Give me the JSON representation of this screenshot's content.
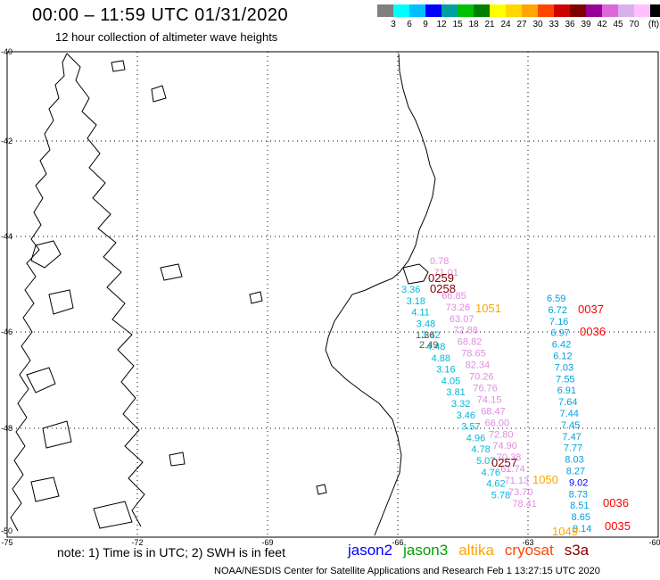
{
  "title": "00:00 – 11:59 UTC 01/31/2020",
  "subtitle": "12 hour collection of altimeter wave heights",
  "legend": {
    "colors": [
      "#808080",
      "#00ffff",
      "#00bfff",
      "#0000ff",
      "#00a0a0",
      "#00c000",
      "#008000",
      "#ffff00",
      "#ffd700",
      "#ffa500",
      "#ff4500",
      "#d00000",
      "#800000",
      "#990099",
      "#dd66dd",
      "#d8b0ee",
      "#ffc0ff",
      "#000000"
    ],
    "labels": [
      "3",
      "6",
      "9",
      "12",
      "15",
      "18",
      "21",
      "24",
      "27",
      "30",
      "33",
      "36",
      "39",
      "42",
      "45",
      "70",
      "(ft)"
    ]
  },
  "axes": {
    "lon": [
      "-75",
      "-72",
      "-69",
      "-66",
      "-63",
      "-60"
    ],
    "lat": [
      "-40",
      "-42",
      "-44",
      "-46",
      "-48",
      "-50"
    ]
  },
  "note": "note:  1) Time is in UTC;  2) SWH is in feet",
  "satellites": [
    {
      "name": "jason2",
      "color": "#0000ff"
    },
    {
      "name": "jason3",
      "color": "#00a000"
    },
    {
      "name": "altika",
      "color": "#ffa500"
    },
    {
      "name": "cryosat",
      "color": "#ff4500"
    },
    {
      "name": "s3a",
      "color": "#800000"
    }
  ],
  "footer": "NOAA/NESDIS Center for Satellite Applications and Research    Feb  1 13:27:15 UTC 2020",
  "tracks": [
    {
      "name": "pink-track",
      "color": "#e08ce0",
      "values": [
        "0.78",
        "71.01",
        "",
        "66.85",
        "73.26",
        "63.07",
        "72.88",
        "68.82",
        "78.65",
        "82.34",
        "70.26",
        "76.76",
        "74.15",
        "68.47",
        "66.00",
        "72.80",
        "74.90",
        "70.38",
        "61.74",
        "71.13",
        "73.70",
        "78.41"
      ]
    },
    {
      "name": "cyan-track",
      "color": "#00b8d8",
      "values": [
        "3.36",
        "3.18",
        "4.11",
        "3.48",
        "3.42",
        "4.48",
        "4.88",
        "3.16",
        "4.05",
        "3.81",
        "3.32",
        "3.46",
        "3.57",
        "4.96",
        "4.78",
        "5.07",
        "4.76",
        "4.62",
        "5.78"
      ]
    },
    {
      "name": "gray-track",
      "color": "#555555",
      "values": [
        "1.36",
        "2.49"
      ]
    },
    {
      "name": "east-track",
      "color": "#00a0e0",
      "values": [
        "6.59",
        "6.72",
        "7.16",
        "6.97",
        "6.42",
        "6.12",
        "7.03",
        "7.55",
        "6.91",
        "7.64",
        "7.44",
        "7.45",
        "7.47",
        "7.77",
        "8.03",
        "8.27",
        "9.02",
        "8.73",
        "8.51",
        "8.65",
        "9.14"
      ]
    }
  ],
  "times": [
    {
      "label": "0259",
      "color": "#800000"
    },
    {
      "label": "0258",
      "color": "#800000"
    },
    {
      "label": "1051",
      "color": "#ffa500"
    },
    {
      "label": "0037",
      "color": "#ff0000"
    },
    {
      "label": "0036",
      "color": "#ff0000"
    },
    {
      "label": "0257",
      "color": "#800000"
    },
    {
      "label": "1050",
      "color": "#ffa500"
    },
    {
      "label": "0036",
      "color": "#ff0000"
    },
    {
      "label": "1049",
      "color": "#ffa500"
    },
    {
      "label": "0035",
      "color": "#ff0000"
    },
    {
      "label": "",
      "color": "#000000"
    }
  ]
}
